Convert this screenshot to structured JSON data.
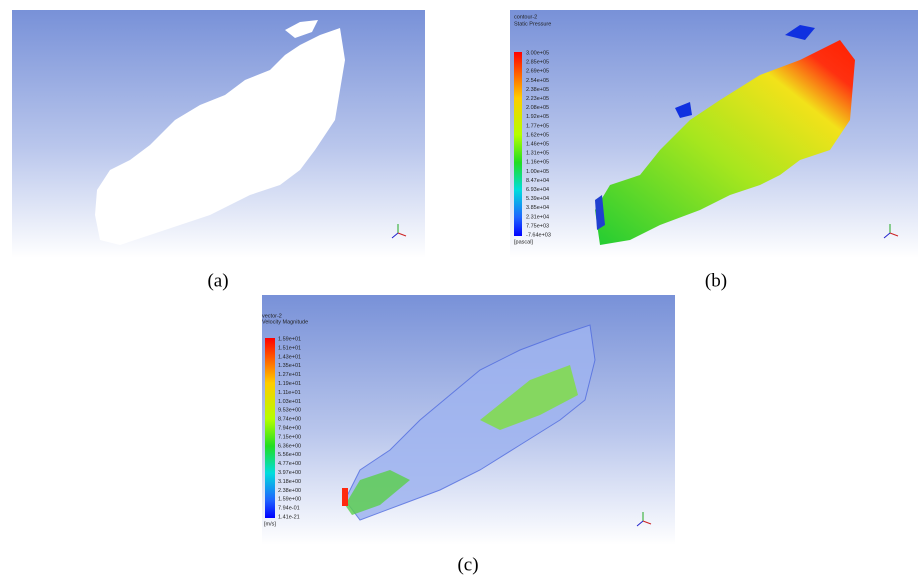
{
  "panels": [
    {
      "caption": "(a)"
    },
    {
      "caption": "(b)",
      "legend_title": "contour-2",
      "legend_subtitle": "Static Pressure",
      "unit": "[pascal]",
      "legend_labels": [
        "3.00e+05",
        "2.85e+05",
        "2.69e+05",
        "2.54e+05",
        "2.38e+05",
        "2.23e+05",
        "2.08e+05",
        "1.92e+05",
        "1.77e+05",
        "1.62e+05",
        "1.46e+05",
        "1.31e+05",
        "1.16e+05",
        "1.00e+05",
        "8.47e+04",
        "6.93e+04",
        "5.39e+04",
        "3.85e+04",
        "2.31e+04",
        "7.75e+03",
        "-7.64e+03"
      ]
    },
    {
      "caption": "(c)",
      "legend_title": "vector-2",
      "legend_subtitle": "Velocity Magnitude",
      "unit": "[m/s]",
      "legend_labels": [
        "1.59e+01",
        "1.51e+01",
        "1.43e+01",
        "1.35e+01",
        "1.27e+01",
        "1.19e+01",
        "1.11e+01",
        "1.03e+01",
        "9.53e+00",
        "8.74e+00",
        "7.94e+00",
        "7.15e+00",
        "6.36e+00",
        "5.56e+00",
        "4.77e+00",
        "3.97e+00",
        "3.18e+00",
        "2.38e+00",
        "1.59e+00",
        "7.94e-01",
        "1.41e-21"
      ]
    }
  ]
}
